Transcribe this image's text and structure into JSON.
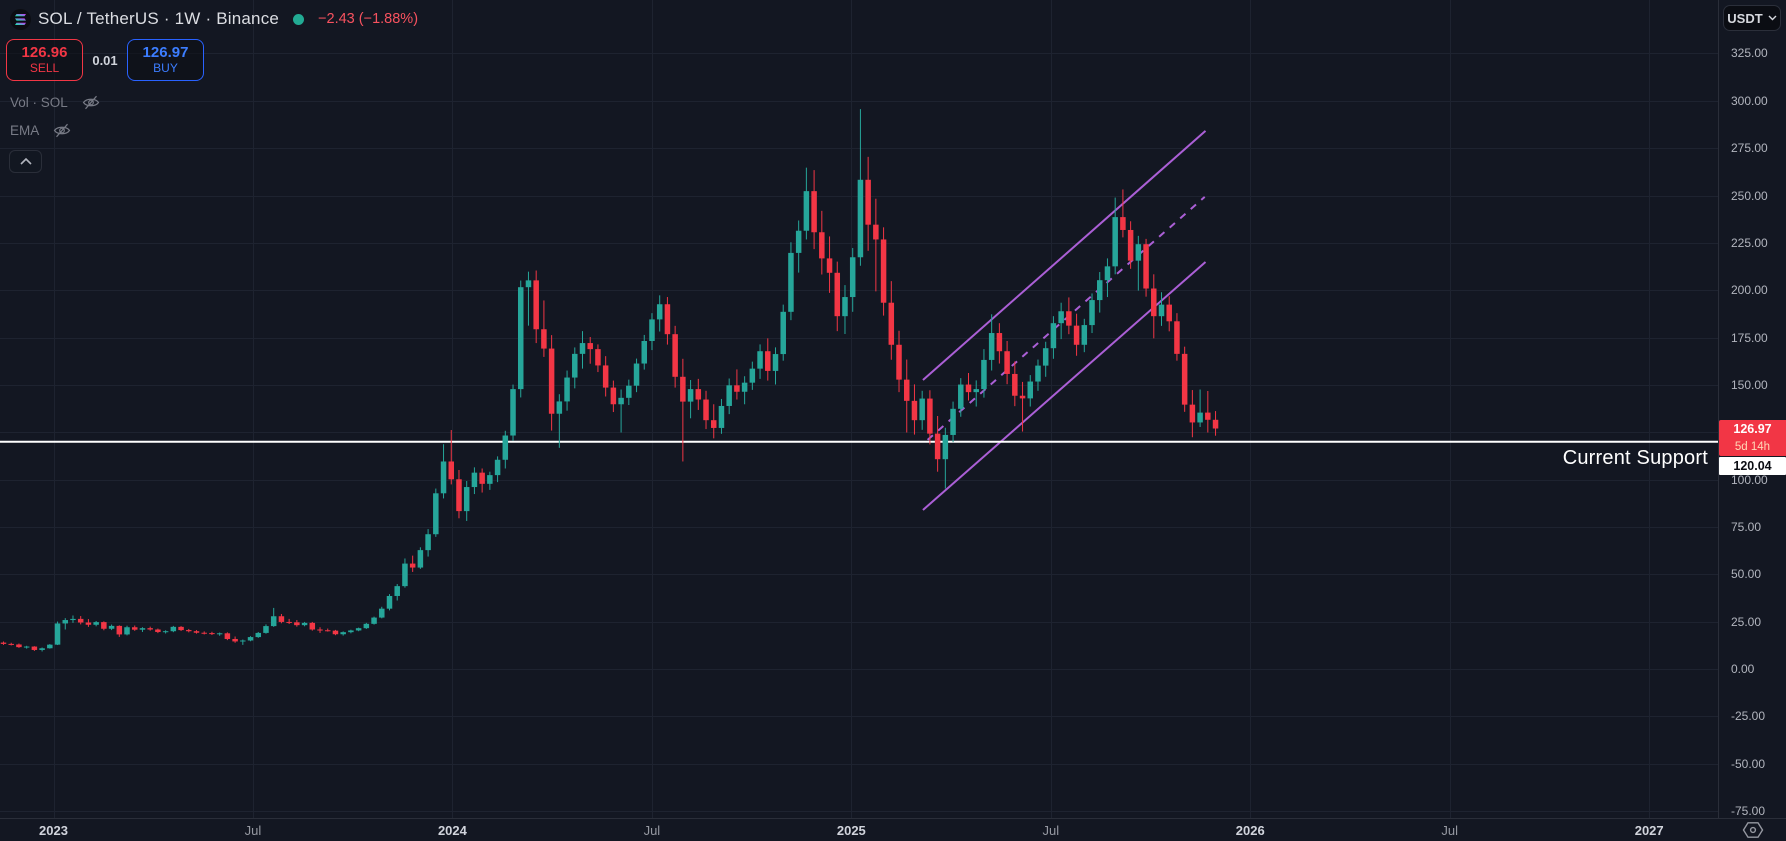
{
  "header": {
    "symbol_title": "SOL / TetherUS · 1W · Binance",
    "change_text": "−2.43 (−1.88%)",
    "spread": "0.01",
    "sell": {
      "price": "126.96",
      "label": "SELL"
    },
    "buy": {
      "price": "126.97",
      "label": "BUY"
    },
    "indicators": [
      {
        "label": "Vol · SOL"
      },
      {
        "label": "EMA"
      }
    ]
  },
  "price_axis": {
    "currency_button": "USDT",
    "ticks": [
      "325.00",
      "300.00",
      "275.00",
      "250.00",
      "225.00",
      "200.00",
      "175.00",
      "150.00",
      "125.00",
      "100.00",
      "75.00",
      "50.00",
      "25.00",
      "0.00",
      "-25.00",
      "-50.00",
      "-75.00"
    ]
  },
  "time_axis": {
    "labels": [
      "2023",
      "Jul",
      "2024",
      "Jul",
      "2025",
      "Jul",
      "2026",
      "Jul",
      "2027"
    ]
  },
  "price_labels": {
    "current": "126.97",
    "countdown": "5d 14h",
    "support": "120.04"
  },
  "annotation": {
    "support_text": "Current Support"
  },
  "colors": {
    "background": "#131722",
    "grid": "#1e2330",
    "up": "#26a69a",
    "down": "#f23645",
    "channel": "#ab5fd6",
    "support_line": "#ffffff",
    "accent_buy": "#2962ff",
    "accent_sell": "#f23645"
  },
  "chart_data": {
    "type": "candlestick",
    "title": "SOL / TetherUS weekly candles on Binance",
    "timeframe": "1W",
    "x_axis": "time (weekly bars, Nov 2022 – Nov 2025)",
    "y_axis": "price (USDT)",
    "ylim": [
      -78,
      353
    ],
    "grid": true,
    "candles_ohlc": [
      [
        14.0,
        14.6,
        12.8,
        13.3
      ],
      [
        13.3,
        13.9,
        12.5,
        13.0
      ],
      [
        13.0,
        13.5,
        11.2,
        11.6
      ],
      [
        11.6,
        12.3,
        10.8,
        11.9
      ],
      [
        11.9,
        12.1,
        9.6,
        10.1
      ],
      [
        10.1,
        11.4,
        9.3,
        11.0
      ],
      [
        11.0,
        13.2,
        10.8,
        12.9
      ],
      [
        12.9,
        25.1,
        12.7,
        24.1
      ],
      [
        24.1,
        26.9,
        20.9,
        25.9
      ],
      [
        25.9,
        28.3,
        24.4,
        26.5
      ],
      [
        26.5,
        28.0,
        23.6,
        24.6
      ],
      [
        24.6,
        26.4,
        22.3,
        23.4
      ],
      [
        23.4,
        25.4,
        22.6,
        24.8
      ],
      [
        24.8,
        25.2,
        20.5,
        21.3
      ],
      [
        21.3,
        23.5,
        20.6,
        22.8
      ],
      [
        22.8,
        23.1,
        17.0,
        18.3
      ],
      [
        18.3,
        22.9,
        17.8,
        22.1
      ],
      [
        22.1,
        23.0,
        20.2,
        20.8
      ],
      [
        20.8,
        22.1,
        19.6,
        21.6
      ],
      [
        21.6,
        22.4,
        20.3,
        20.9
      ],
      [
        20.9,
        21.4,
        19.0,
        19.6
      ],
      [
        19.6,
        20.5,
        18.8,
        20.0
      ],
      [
        20.0,
        22.8,
        19.5,
        22.3
      ],
      [
        22.3,
        22.7,
        20.1,
        20.6
      ],
      [
        20.6,
        21.2,
        19.4,
        20.0
      ],
      [
        20.0,
        20.6,
        18.7,
        19.2
      ],
      [
        19.2,
        19.9,
        18.3,
        19.0
      ],
      [
        19.0,
        19.7,
        18.0,
        18.5
      ],
      [
        18.5,
        19.3,
        17.6,
        18.9
      ],
      [
        18.9,
        19.4,
        15.3,
        15.9
      ],
      [
        15.9,
        17.2,
        13.9,
        14.6
      ],
      [
        14.6,
        15.6,
        12.8,
        15.1
      ],
      [
        15.1,
        17.4,
        14.7,
        16.9
      ],
      [
        16.9,
        19.6,
        16.5,
        19.1
      ],
      [
        19.1,
        23.6,
        18.7,
        22.7
      ],
      [
        22.7,
        32.3,
        22.3,
        27.9
      ],
      [
        27.9,
        29.1,
        24.2,
        24.9
      ],
      [
        24.9,
        26.5,
        23.8,
        24.7
      ],
      [
        24.7,
        25.9,
        22.4,
        23.2
      ],
      [
        23.2,
        24.9,
        22.6,
        24.4
      ],
      [
        24.4,
        24.9,
        20.3,
        20.9
      ],
      [
        20.9,
        22.1,
        19.1,
        20.5
      ],
      [
        20.5,
        21.4,
        19.8,
        20.3
      ],
      [
        20.3,
        20.7,
        17.9,
        18.4
      ],
      [
        18.4,
        19.9,
        17.7,
        19.5
      ],
      [
        19.5,
        20.8,
        18.9,
        20.4
      ],
      [
        20.4,
        21.9,
        20.0,
        21.6
      ],
      [
        21.6,
        24.4,
        21.2,
        23.9
      ],
      [
        23.9,
        27.7,
        23.5,
        27.2
      ],
      [
        27.2,
        32.9,
        26.8,
        31.9
      ],
      [
        31.9,
        39.6,
        31.0,
        38.6
      ],
      [
        38.6,
        44.9,
        36.2,
        43.8
      ],
      [
        43.8,
        58.4,
        43.0,
        55.7
      ],
      [
        55.7,
        59.9,
        51.3,
        53.6
      ],
      [
        53.6,
        64.3,
        52.9,
        62.8
      ],
      [
        62.8,
        73.9,
        59.4,
        71.2
      ],
      [
        71.2,
        95.3,
        69.8,
        92.8
      ],
      [
        92.8,
        118.7,
        90.1,
        109.6
      ],
      [
        109.6,
        126.2,
        97.5,
        100.2
      ],
      [
        100.2,
        105.1,
        79.6,
        83.4
      ],
      [
        83.4,
        99.3,
        78.2,
        96.1
      ],
      [
        96.1,
        106.5,
        92.4,
        103.7
      ],
      [
        103.7,
        105.9,
        93.2,
        97.8
      ],
      [
        97.8,
        104.2,
        94.6,
        102.4
      ],
      [
        102.4,
        112.3,
        98.7,
        110.5
      ],
      [
        110.5,
        125.8,
        105.9,
        123.3
      ],
      [
        123.3,
        150.2,
        120.6,
        147.8
      ],
      [
        147.8,
        205.1,
        143.4,
        201.6
      ],
      [
        201.6,
        209.8,
        181.3,
        205.2
      ],
      [
        205.2,
        210.4,
        172.1,
        179.4
      ],
      [
        179.4,
        194.6,
        164.8,
        169.2
      ],
      [
        169.2,
        176.3,
        125.9,
        134.8
      ],
      [
        134.8,
        145.1,
        116.8,
        141.3
      ],
      [
        141.3,
        157.6,
        136.4,
        153.9
      ],
      [
        153.9,
        169.8,
        148.2,
        166.4
      ],
      [
        166.4,
        178.4,
        158.6,
        172.1
      ],
      [
        172.1,
        175.3,
        161.2,
        168.9
      ],
      [
        168.9,
        171.4,
        156.8,
        160.3
      ],
      [
        160.3,
        165.2,
        143.9,
        148.6
      ],
      [
        148.6,
        152.3,
        135.7,
        139.8
      ],
      [
        139.8,
        147.6,
        124.9,
        143.2
      ],
      [
        143.2,
        152.8,
        139.4,
        149.6
      ],
      [
        149.6,
        163.9,
        146.2,
        161.3
      ],
      [
        161.3,
        176.4,
        158.1,
        173.2
      ],
      [
        173.2,
        187.9,
        168.4,
        184.6
      ],
      [
        184.6,
        197.3,
        178.2,
        192.6
      ],
      [
        192.6,
        196.4,
        171.3,
        176.8
      ],
      [
        176.8,
        181.2,
        148.6,
        154.3
      ],
      [
        154.3,
        163.8,
        109.6,
        141.2
      ],
      [
        141.2,
        152.6,
        132.4,
        147.8
      ],
      [
        147.8,
        153.2,
        136.8,
        142.3
      ],
      [
        142.3,
        146.9,
        126.7,
        131.4
      ],
      [
        131.4,
        139.8,
        121.8,
        127.3
      ],
      [
        127.3,
        142.6,
        124.2,
        138.9
      ],
      [
        138.9,
        153.4,
        134.6,
        149.8
      ],
      [
        149.8,
        158.2,
        142.3,
        146.4
      ],
      [
        146.4,
        154.6,
        139.8,
        151.2
      ],
      [
        151.2,
        162.3,
        147.4,
        158.6
      ],
      [
        158.6,
        171.4,
        153.2,
        167.8
      ],
      [
        167.8,
        174.6,
        152.3,
        157.4
      ],
      [
        157.4,
        169.8,
        150.2,
        166.3
      ],
      [
        166.3,
        192.4,
        162.8,
        188.6
      ],
      [
        188.6,
        225.3,
        184.2,
        219.7
      ],
      [
        219.7,
        236.8,
        209.3,
        231.4
      ],
      [
        231.4,
        264.7,
        226.8,
        252.3
      ],
      [
        252.3,
        263.4,
        221.7,
        230.6
      ],
      [
        230.6,
        241.9,
        208.3,
        216.8
      ],
      [
        216.8,
        228.4,
        198.6,
        209.2
      ],
      [
        209.2,
        215.1,
        178.4,
        186.3
      ],
      [
        186.3,
        202.7,
        176.9,
        196.4
      ],
      [
        196.4,
        222.3,
        188.6,
        217.4
      ],
      [
        217.4,
        295.6,
        212.9,
        258.3
      ],
      [
        258.3,
        270.4,
        220.8,
        234.6
      ],
      [
        234.6,
        248.3,
        199.4,
        226.8
      ],
      [
        226.8,
        233.2,
        186.6,
        193.4
      ],
      [
        193.4,
        204.8,
        163.3,
        171.2
      ],
      [
        171.2,
        178.6,
        146.2,
        152.8
      ],
      [
        152.8,
        163.4,
        124.9,
        141.6
      ],
      [
        141.6,
        150.3,
        123.8,
        131.4
      ],
      [
        131.4,
        146.9,
        126.3,
        142.8
      ],
      [
        142.8,
        147.2,
        118.6,
        124.3
      ],
      [
        124.3,
        133.6,
        104.2,
        110.8
      ],
      [
        110.8,
        127.4,
        95.3,
        123.6
      ],
      [
        123.6,
        141.2,
        119.8,
        137.4
      ],
      [
        137.4,
        153.6,
        133.2,
        150.2
      ],
      [
        150.2,
        156.3,
        141.8,
        146.2
      ],
      [
        146.2,
        152.4,
        138.6,
        147.8
      ],
      [
        147.8,
        168.9,
        143.3,
        163.2
      ],
      [
        163.2,
        187.3,
        157.6,
        177.4
      ],
      [
        177.4,
        182.6,
        161.3,
        167.8
      ],
      [
        167.8,
        173.2,
        150.4,
        155.8
      ],
      [
        155.8,
        162.4,
        138.8,
        144.3
      ],
      [
        144.3,
        151.6,
        125.4,
        142.9
      ],
      [
        142.9,
        155.2,
        138.6,
        151.8
      ],
      [
        151.8,
        163.4,
        146.9,
        160.2
      ],
      [
        160.2,
        172.8,
        154.3,
        169.4
      ],
      [
        169.4,
        186.3,
        163.8,
        182.6
      ],
      [
        182.6,
        193.4,
        174.2,
        188.9
      ],
      [
        188.9,
        196.2,
        176.8,
        181.3
      ],
      [
        181.3,
        187.6,
        165.4,
        171.2
      ],
      [
        171.2,
        184.9,
        167.3,
        181.6
      ],
      [
        181.6,
        198.3,
        177.4,
        194.8
      ],
      [
        194.8,
        209.6,
        188.2,
        205.3
      ],
      [
        205.3,
        216.8,
        196.4,
        212.6
      ],
      [
        212.6,
        248.9,
        208.4,
        238.6
      ],
      [
        238.6,
        253.2,
        227.9,
        231.8
      ],
      [
        231.8,
        236.4,
        211.3,
        215.6
      ],
      [
        215.6,
        228.7,
        199.8,
        224.3
      ],
      [
        224.3,
        227.1,
        196.6,
        200.9
      ],
      [
        200.9,
        208.4,
        174.6,
        186.3
      ],
      [
        186.3,
        198.9,
        181.2,
        192.4
      ],
      [
        192.4,
        196.8,
        178.3,
        183.6
      ],
      [
        183.6,
        187.9,
        162.8,
        166.4
      ],
      [
        166.4,
        170.2,
        135.8,
        139.6
      ],
      [
        139.6,
        147.3,
        122.4,
        130.2
      ],
      [
        130.2,
        147.6,
        127.8,
        135.4
      ],
      [
        135.4,
        146.8,
        124.9,
        131.6
      ],
      [
        131.6,
        136.2,
        123.2,
        127.0
      ]
    ],
    "drawings": {
      "current_price": {
        "price": 126.97
      },
      "support_line": {
        "price": 120.04
      },
      "channel_lines": [
        {
          "w1": 119.1,
          "p1": 152.6,
          "w2": 155.7,
          "p2": 284.1,
          "style": "solid"
        },
        {
          "w1": 119.7,
          "p1": 121.0,
          "w2": 155.6,
          "p2": 249.3,
          "style": "dashed"
        },
        {
          "w1": 119.1,
          "p1": 84.0,
          "w2": 155.7,
          "p2": 214.9,
          "style": "solid"
        }
      ]
    }
  }
}
